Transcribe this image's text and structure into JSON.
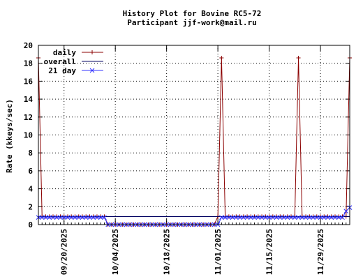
{
  "chart_data": {
    "type": "line",
    "title": "History Plot for Bovine RC5-72",
    "subtitle": "Participant jjf-work@mail.ru",
    "xlabel": "",
    "ylabel": "Rate (kkeys/sec)",
    "xlim": [
      "2025-09-13",
      "2025-12-07"
    ],
    "ylim": [
      0,
      20
    ],
    "yticks": [
      0,
      2,
      4,
      6,
      8,
      10,
      12,
      14,
      16,
      18,
      20
    ],
    "xticks": [
      "09/20/2025",
      "10/04/2025",
      "10/18/2025",
      "11/01/2025",
      "11/15/2025",
      "11/29/2025"
    ],
    "grid": true,
    "legend_position": "top-left",
    "series": [
      {
        "name": "daily",
        "color": "#8b0000",
        "marker": "plus",
        "points": [
          [
            "2025-09-13",
            18.6
          ],
          [
            "2025-09-14",
            0.9
          ],
          [
            "2025-09-15",
            0.9
          ],
          [
            "2025-09-16",
            0.9
          ],
          [
            "2025-09-17",
            0.9
          ],
          [
            "2025-09-18",
            0.9
          ],
          [
            "2025-09-19",
            0.9
          ],
          [
            "2025-09-20",
            0.9
          ],
          [
            "2025-09-21",
            0.9
          ],
          [
            "2025-09-22",
            0.9
          ],
          [
            "2025-09-23",
            0.9
          ],
          [
            "2025-09-24",
            0.9
          ],
          [
            "2025-09-25",
            0.9
          ],
          [
            "2025-09-26",
            0.9
          ],
          [
            "2025-09-27",
            0.9
          ],
          [
            "2025-09-28",
            0.9
          ],
          [
            "2025-09-29",
            0.9
          ],
          [
            "2025-09-30",
            0.9
          ],
          [
            "2025-10-01",
            0.9
          ],
          [
            "2025-10-02",
            0.0
          ],
          [
            "2025-10-03",
            0.0
          ],
          [
            "2025-10-04",
            0.0
          ],
          [
            "2025-10-05",
            0.0
          ],
          [
            "2025-10-06",
            0.0
          ],
          [
            "2025-10-07",
            0.0
          ],
          [
            "2025-10-08",
            0.0
          ],
          [
            "2025-10-09",
            0.0
          ],
          [
            "2025-10-10",
            0.0
          ],
          [
            "2025-10-11",
            0.0
          ],
          [
            "2025-10-12",
            0.0
          ],
          [
            "2025-10-13",
            0.0
          ],
          [
            "2025-10-14",
            0.0
          ],
          [
            "2025-10-15",
            0.0
          ],
          [
            "2025-10-16",
            0.0
          ],
          [
            "2025-10-17",
            0.0
          ],
          [
            "2025-10-18",
            0.0
          ],
          [
            "2025-10-19",
            0.0
          ],
          [
            "2025-10-20",
            0.0
          ],
          [
            "2025-10-21",
            0.0
          ],
          [
            "2025-10-22",
            0.0
          ],
          [
            "2025-10-23",
            0.0
          ],
          [
            "2025-10-24",
            0.0
          ],
          [
            "2025-10-25",
            0.0
          ],
          [
            "2025-10-26",
            0.0
          ],
          [
            "2025-10-27",
            0.0
          ],
          [
            "2025-10-28",
            0.0
          ],
          [
            "2025-10-29",
            0.0
          ],
          [
            "2025-10-30",
            0.0
          ],
          [
            "2025-10-31",
            0.0
          ],
          [
            "2025-11-01",
            0.9
          ],
          [
            "2025-11-02",
            18.6
          ],
          [
            "2025-11-03",
            0.9
          ],
          [
            "2025-11-04",
            0.9
          ],
          [
            "2025-11-05",
            0.9
          ],
          [
            "2025-11-06",
            0.9
          ],
          [
            "2025-11-07",
            0.9
          ],
          [
            "2025-11-08",
            0.9
          ],
          [
            "2025-11-09",
            0.9
          ],
          [
            "2025-11-10",
            0.9
          ],
          [
            "2025-11-11",
            0.9
          ],
          [
            "2025-11-12",
            0.9
          ],
          [
            "2025-11-13",
            0.9
          ],
          [
            "2025-11-14",
            0.9
          ],
          [
            "2025-11-15",
            0.9
          ],
          [
            "2025-11-16",
            0.9
          ],
          [
            "2025-11-17",
            0.9
          ],
          [
            "2025-11-18",
            0.9
          ],
          [
            "2025-11-19",
            0.9
          ],
          [
            "2025-11-20",
            0.9
          ],
          [
            "2025-11-21",
            0.9
          ],
          [
            "2025-11-22",
            0.9
          ],
          [
            "2025-11-23",
            18.6
          ],
          [
            "2025-11-24",
            0.9
          ],
          [
            "2025-11-25",
            0.9
          ],
          [
            "2025-11-26",
            0.9
          ],
          [
            "2025-11-27",
            0.9
          ],
          [
            "2025-11-28",
            0.9
          ],
          [
            "2025-11-29",
            0.9
          ],
          [
            "2025-11-30",
            0.9
          ],
          [
            "2025-12-01",
            0.9
          ],
          [
            "2025-12-02",
            0.9
          ],
          [
            "2025-12-03",
            0.9
          ],
          [
            "2025-12-04",
            0.9
          ],
          [
            "2025-12-05",
            0.9
          ],
          [
            "2025-12-06",
            0.9
          ],
          [
            "2025-12-07",
            18.6
          ]
        ]
      },
      {
        "name": "overall",
        "color": "#000060",
        "marker": "none",
        "points": [
          [
            "2025-09-13",
            0.9
          ],
          [
            "2025-12-07",
            0.9
          ]
        ]
      },
      {
        "name": "21 day",
        "color": "#3333ff",
        "marker": "cross",
        "points": [
          [
            "2025-09-13",
            0.8
          ],
          [
            "2025-09-14",
            0.8
          ],
          [
            "2025-09-15",
            0.8
          ],
          [
            "2025-09-16",
            0.8
          ],
          [
            "2025-09-17",
            0.8
          ],
          [
            "2025-09-18",
            0.8
          ],
          [
            "2025-09-19",
            0.8
          ],
          [
            "2025-09-20",
            0.8
          ],
          [
            "2025-09-21",
            0.8
          ],
          [
            "2025-09-22",
            0.8
          ],
          [
            "2025-09-23",
            0.8
          ],
          [
            "2025-09-24",
            0.8
          ],
          [
            "2025-09-25",
            0.8
          ],
          [
            "2025-09-26",
            0.8
          ],
          [
            "2025-09-27",
            0.8
          ],
          [
            "2025-09-28",
            0.8
          ],
          [
            "2025-09-29",
            0.8
          ],
          [
            "2025-09-30",
            0.8
          ],
          [
            "2025-10-01",
            0.8
          ],
          [
            "2025-10-02",
            0.0
          ],
          [
            "2025-10-03",
            0.0
          ],
          [
            "2025-10-04",
            0.0
          ],
          [
            "2025-10-05",
            0.0
          ],
          [
            "2025-10-06",
            0.0
          ],
          [
            "2025-10-07",
            0.0
          ],
          [
            "2025-10-08",
            0.0
          ],
          [
            "2025-10-09",
            0.0
          ],
          [
            "2025-10-10",
            0.0
          ],
          [
            "2025-10-11",
            0.0
          ],
          [
            "2025-10-12",
            0.0
          ],
          [
            "2025-10-13",
            0.0
          ],
          [
            "2025-10-14",
            0.0
          ],
          [
            "2025-10-15",
            0.0
          ],
          [
            "2025-10-16",
            0.0
          ],
          [
            "2025-10-17",
            0.0
          ],
          [
            "2025-10-18",
            0.0
          ],
          [
            "2025-10-19",
            0.0
          ],
          [
            "2025-10-20",
            0.0
          ],
          [
            "2025-10-21",
            0.0
          ],
          [
            "2025-10-22",
            0.0
          ],
          [
            "2025-10-23",
            0.0
          ],
          [
            "2025-10-24",
            0.0
          ],
          [
            "2025-10-25",
            0.0
          ],
          [
            "2025-10-26",
            0.0
          ],
          [
            "2025-10-27",
            0.0
          ],
          [
            "2025-10-28",
            0.0
          ],
          [
            "2025-10-29",
            0.0
          ],
          [
            "2025-10-30",
            0.0
          ],
          [
            "2025-10-31",
            0.0
          ],
          [
            "2025-11-01",
            0.0
          ],
          [
            "2025-11-02",
            0.8
          ],
          [
            "2025-11-03",
            0.8
          ],
          [
            "2025-11-04",
            0.8
          ],
          [
            "2025-11-05",
            0.8
          ],
          [
            "2025-11-06",
            0.8
          ],
          [
            "2025-11-07",
            0.8
          ],
          [
            "2025-11-08",
            0.8
          ],
          [
            "2025-11-09",
            0.8
          ],
          [
            "2025-11-10",
            0.8
          ],
          [
            "2025-11-11",
            0.8
          ],
          [
            "2025-11-12",
            0.8
          ],
          [
            "2025-11-13",
            0.8
          ],
          [
            "2025-11-14",
            0.8
          ],
          [
            "2025-11-15",
            0.8
          ],
          [
            "2025-11-16",
            0.8
          ],
          [
            "2025-11-17",
            0.8
          ],
          [
            "2025-11-18",
            0.8
          ],
          [
            "2025-11-19",
            0.8
          ],
          [
            "2025-11-20",
            0.8
          ],
          [
            "2025-11-21",
            0.8
          ],
          [
            "2025-11-22",
            0.8
          ],
          [
            "2025-11-23",
            0.8
          ],
          [
            "2025-11-24",
            0.8
          ],
          [
            "2025-11-25",
            0.8
          ],
          [
            "2025-11-26",
            0.8
          ],
          [
            "2025-11-27",
            0.8
          ],
          [
            "2025-11-28",
            0.8
          ],
          [
            "2025-11-29",
            0.8
          ],
          [
            "2025-11-30",
            0.8
          ],
          [
            "2025-12-01",
            0.8
          ],
          [
            "2025-12-02",
            0.8
          ],
          [
            "2025-12-03",
            0.8
          ],
          [
            "2025-12-04",
            0.8
          ],
          [
            "2025-12-05",
            0.8
          ],
          [
            "2025-12-06",
            1.5
          ],
          [
            "2025-12-07",
            1.9
          ]
        ]
      }
    ]
  }
}
